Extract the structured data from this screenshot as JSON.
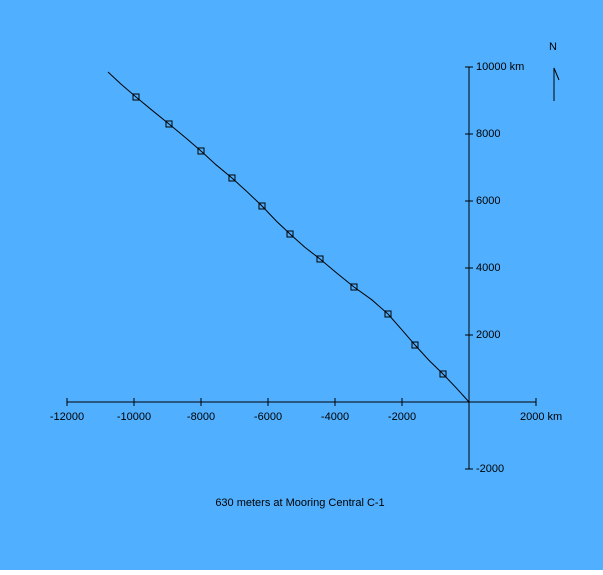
{
  "chart_data": {
    "type": "line",
    "title": "630 meters at Mooring Central C-1",
    "north_label": "N",
    "background": "#50b0ff",
    "xlim": [
      -12000,
      2000
    ],
    "ylim": [
      -2000,
      10000
    ],
    "xticks": [
      -12000,
      -10000,
      -8000,
      -6000,
      -4000,
      -2000,
      {
        "value": 2000,
        "label": "2000 km"
      }
    ],
    "yticks": [
      {
        "value": 10000,
        "label": "10000 km"
      },
      8000,
      6000,
      4000,
      2000,
      -2000
    ],
    "series": [
      {
        "color": "#000000",
        "marker": "none",
        "x": [
          0,
          -380,
          -776,
          -1200,
          -1612,
          -2000,
          -2418,
          -2900,
          -3433,
          -3950,
          -4448,
          -4900,
          -5343,
          -5750,
          -6179,
          -6650,
          -7075,
          -7550,
          -8000,
          -8450,
          -8955,
          -9450,
          -9940,
          -10400,
          -10776
        ],
        "values": [
          0,
          420,
          836,
          1250,
          1701,
          2150,
          2627,
          3050,
          3433,
          3850,
          4269,
          4620,
          5015,
          5400,
          5851,
          6300,
          6687,
          7080,
          7493,
          7880,
          8299,
          8700,
          9104,
          9500,
          9851
        ]
      },
      {
        "color": "#000000",
        "marker": "square",
        "x": [
          -776,
          -1612,
          -2418,
          -3433,
          -4448,
          -5343,
          -6179,
          -7075,
          -8000,
          -8955,
          -9940
        ],
        "values": [
          836,
          1701,
          2627,
          3433,
          4269,
          5015,
          5851,
          6687,
          7493,
          8299,
          9104
        ]
      }
    ]
  }
}
